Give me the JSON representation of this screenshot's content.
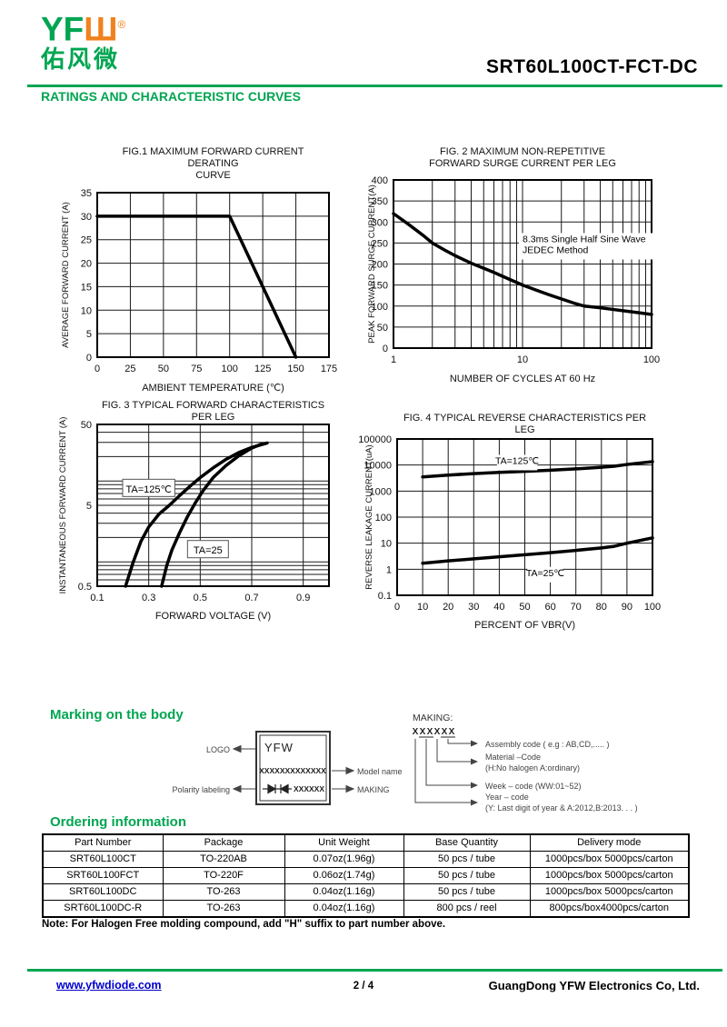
{
  "header": {
    "logo_text_green": "YF",
    "logo_text_orange": "Ш",
    "logo_registered": "®",
    "logo_chinese": "佑风微",
    "part_number": "SRT60L100CT-FCT-DC",
    "section_title": "RATINGS AND CHARACTERISTIC CURVES"
  },
  "colors": {
    "brand_green": "#00A551",
    "brand_orange": "#F0821E",
    "link_blue": "#0000CC",
    "curve_black": "#000000"
  },
  "chart_data": [
    {
      "type": "line",
      "title_lines": [
        "FIG.1 MAXIMUM FORWARD CURRENT DERATING",
        "CURVE"
      ],
      "xlabel": "AMBIENT TEMPERATURE (℃)",
      "ylabel": "AVERAGE FORWARD CURRENT (A)",
      "x": {
        "scale": "linear",
        "min": 0,
        "max": 175,
        "ticks": [
          [
            0,
            "0"
          ],
          [
            25,
            "25"
          ],
          [
            50,
            "50"
          ],
          [
            75,
            "75"
          ],
          [
            100,
            "100"
          ],
          [
            125,
            "125"
          ],
          [
            150,
            "150"
          ],
          [
            175,
            "175"
          ]
        ],
        "grid": [
          25,
          50,
          75,
          100,
          125,
          150
        ]
      },
      "y": {
        "scale": "linear",
        "min": 0,
        "max": 35,
        "ticks": [
          [
            0,
            "0"
          ],
          [
            5,
            "5"
          ],
          [
            10,
            "10"
          ],
          [
            15,
            "15"
          ],
          [
            20,
            "20"
          ],
          [
            25,
            "25"
          ],
          [
            30,
            "30"
          ],
          [
            35,
            "35"
          ]
        ],
        "grid": [
          5,
          10,
          15,
          20,
          25,
          30
        ]
      },
      "series": [
        {
          "name": "derating",
          "points": [
            [
              0,
              30
            ],
            [
              100,
              30
            ],
            [
              150,
              0
            ]
          ]
        }
      ],
      "annotations": []
    },
    {
      "type": "line",
      "title_lines": [
        "FIG. 2 MAXIMUM NON-REPETITIVE",
        "FORWARD SURGE CURRENT PER LEG"
      ],
      "xlabel": "NUMBER OF CYCLES AT 60 Hz",
      "ylabel": "PEAK FORWARD SURGE CURRENT(A)",
      "x": {
        "scale": "log",
        "min": 1,
        "max": 100,
        "ticks": [
          [
            1,
            "1"
          ],
          [
            10,
            "10"
          ],
          [
            100,
            "100"
          ]
        ],
        "grid": [
          2,
          3,
          4,
          5,
          6,
          7,
          8,
          9,
          10,
          20,
          30,
          40,
          50,
          60,
          70,
          80,
          90
        ]
      },
      "y": {
        "scale": "linear",
        "min": 0,
        "max": 400,
        "ticks": [
          [
            0,
            "0"
          ],
          [
            50,
            "50"
          ],
          [
            100,
            "100"
          ],
          [
            150,
            "150"
          ],
          [
            200,
            "200"
          ],
          [
            250,
            "250"
          ],
          [
            300,
            "300"
          ],
          [
            350,
            "350"
          ],
          [
            400,
            "400"
          ]
        ],
        "grid": [
          50,
          100,
          150,
          200,
          250,
          300,
          350
        ]
      },
      "series": [
        {
          "name": "surge",
          "points": [
            [
              1,
              320
            ],
            [
              1.3,
              295
            ],
            [
              1.7,
              268
            ],
            [
              2,
              250
            ],
            [
              2.5,
              233
            ],
            [
              3,
              220
            ],
            [
              4,
              202
            ],
            [
              5,
              190
            ],
            [
              6,
              180
            ],
            [
              8,
              163
            ],
            [
              10,
              150
            ],
            [
              13,
              137
            ],
            [
              16,
              127
            ],
            [
              20,
              117
            ],
            [
              25,
              107
            ],
            [
              30,
              100
            ],
            [
              40,
              96
            ],
            [
              50,
              92
            ],
            [
              60,
              89
            ],
            [
              80,
              84
            ],
            [
              100,
              80
            ]
          ]
        }
      ],
      "annotations": [
        {
          "lines": [
            "8.3ms Single Half Sine Wave",
            "JEDEC Method"
          ],
          "x": 10,
          "y": 252,
          "boxed": false,
          "anchor": "start"
        }
      ]
    },
    {
      "type": "line",
      "title_lines": [
        "FIG. 3 TYPICAL FORWARD CHARACTERISTICS",
        "PER LEG"
      ],
      "xlabel": "FORWARD VOLTAGE (V)",
      "ylabel": "INSTANTANEOUS FORWARD CURRENT (A)",
      "x": {
        "scale": "linear",
        "min": 0.1,
        "max": 1.0,
        "ticks": [
          [
            0.1,
            "0.1"
          ],
          [
            0.3,
            "0.3"
          ],
          [
            0.5,
            "0.5"
          ],
          [
            0.7,
            "0.7"
          ],
          [
            0.9,
            "0.9"
          ]
        ],
        "grid": [
          0.3,
          0.5,
          0.7,
          0.9
        ]
      },
      "y": {
        "scale": "log",
        "min": 0.5,
        "max": 50,
        "ticks": [
          [
            0.5,
            "0.5"
          ],
          [
            5,
            "5"
          ],
          [
            50,
            "50"
          ]
        ],
        "grid": [
          0.6,
          0.7,
          0.8,
          0.9,
          1,
          2,
          3,
          4,
          5,
          6,
          7,
          8,
          9,
          10,
          20,
          30,
          40
        ]
      },
      "series": [
        {
          "name": "TA=125C",
          "points": [
            [
              0.21,
              0.5
            ],
            [
              0.24,
              1.0
            ],
            [
              0.27,
              1.8
            ],
            [
              0.3,
              2.7
            ],
            [
              0.34,
              3.9
            ],
            [
              0.38,
              5.0
            ],
            [
              0.42,
              6.6
            ],
            [
              0.46,
              8.6
            ],
            [
              0.5,
              11
            ],
            [
              0.55,
              14.5
            ],
            [
              0.6,
              18.5
            ],
            [
              0.65,
              22.5
            ],
            [
              0.7,
              26
            ],
            [
              0.76,
              29.5
            ]
          ]
        },
        {
          "name": "TA=25",
          "points": [
            [
              0.35,
              0.5
            ],
            [
              0.37,
              0.9
            ],
            [
              0.39,
              1.4
            ],
            [
              0.42,
              2.3
            ],
            [
              0.45,
              3.6
            ],
            [
              0.48,
              5.3
            ],
            [
              0.51,
              7.5
            ],
            [
              0.55,
              11
            ],
            [
              0.6,
              15.5
            ],
            [
              0.65,
              20.5
            ],
            [
              0.7,
              25.5
            ],
            [
              0.74,
              28.8
            ]
          ]
        }
      ],
      "annotations": [
        {
          "lines": [
            "TA=125℃"
          ],
          "x": 0.3,
          "y": 8,
          "boxed": true,
          "anchor": "middle"
        },
        {
          "lines": [
            "TA=25"
          ],
          "x": 0.53,
          "y": 1.4,
          "boxed": true,
          "anchor": "middle"
        }
      ]
    },
    {
      "type": "line",
      "title_lines": [
        "FIG. 4 TYPICAL REVERSE CHARACTERISTICS PER LEG"
      ],
      "xlabel": "PERCENT OF VBR(V)",
      "ylabel": "REVERSE LEAKAGE CURRENT(uA)",
      "x": {
        "scale": "linear",
        "min": 0,
        "max": 100,
        "ticks": [
          [
            0,
            "0"
          ],
          [
            10,
            "10"
          ],
          [
            20,
            "20"
          ],
          [
            30,
            "30"
          ],
          [
            40,
            "40"
          ],
          [
            50,
            "50"
          ],
          [
            60,
            "60"
          ],
          [
            70,
            "70"
          ],
          [
            80,
            "80"
          ],
          [
            90,
            "90"
          ],
          [
            100,
            "100"
          ]
        ],
        "grid": [
          10,
          20,
          30,
          40,
          50,
          60,
          70,
          80,
          90
        ]
      },
      "y": {
        "scale": "log",
        "min": 0.1,
        "max": 100000,
        "ticks": [
          [
            0.1,
            "0.1"
          ],
          [
            1,
            "1"
          ],
          [
            10,
            "10"
          ],
          [
            100,
            "100"
          ],
          [
            1000,
            "1000"
          ],
          [
            10000,
            "10000"
          ],
          [
            100000,
            "100000"
          ]
        ],
        "grid": [
          1,
          10,
          100,
          1000,
          10000
        ]
      },
      "series": [
        {
          "name": "TA=125C",
          "points": [
            [
              10,
              3500
            ],
            [
              20,
              4100
            ],
            [
              30,
              4700
            ],
            [
              40,
              5200
            ],
            [
              50,
              5700
            ],
            [
              60,
              6300
            ],
            [
              70,
              7100
            ],
            [
              80,
              8200
            ],
            [
              85,
              9000
            ],
            [
              90,
              10500
            ],
            [
              100,
              13500
            ]
          ]
        },
        {
          "name": "TA=25C",
          "points": [
            [
              10,
              1.7
            ],
            [
              20,
              2.1
            ],
            [
              30,
              2.5
            ],
            [
              40,
              3.0
            ],
            [
              50,
              3.6
            ],
            [
              60,
              4.3
            ],
            [
              70,
              5.3
            ],
            [
              80,
              6.6
            ],
            [
              85,
              7.6
            ],
            [
              90,
              10
            ],
            [
              100,
              16
            ]
          ]
        }
      ],
      "annotations": [
        {
          "lines": [
            "TA=125℃"
          ],
          "x": 47,
          "y": 11000,
          "boxed": false,
          "anchor": "middle"
        },
        {
          "lines": [
            "TA=25℃"
          ],
          "x": 58,
          "y": 0.55,
          "boxed": false,
          "anchor": "middle"
        }
      ]
    }
  ],
  "marking": {
    "heading": "Marking on the body",
    "body_logo": "YFW",
    "model_placeholder": "XXXXXXXXXXXXX",
    "making_placeholder": "XXXXXX",
    "label_logo": "LOGO",
    "label_polarity": "Polarity labeling",
    "label_model": "Model name",
    "label_making": "MAKING",
    "making_title": "MAKING:",
    "making_code_chars": [
      "X",
      "X",
      "X",
      "X",
      "X",
      "X"
    ],
    "legend": [
      {
        "line1": "Assembly code ( e.g : AB,CD,..... )",
        "line2": ""
      },
      {
        "line1": "Material –Code",
        "line2": "(H:No halogen   A:ordinary)"
      },
      {
        "line1": "Week – code (WW:01~52)",
        "line2": ""
      },
      {
        "line1": "Year – code",
        "line2": "(Y: Last digit of year & A:2012,B:2013. . . )"
      }
    ]
  },
  "ordering": {
    "heading": "Ordering information",
    "headers": [
      "Part Number",
      "Package",
      "Unit Weight",
      "Base Quantity",
      "Delivery mode"
    ],
    "rows": [
      [
        "SRT60L100CT",
        "TO-220AB",
        "0.07oz(1.96g)",
        "50 pcs / tube",
        "1000pcs/box 5000pcs/carton"
      ],
      [
        "SRT60L100FCT",
        "TO-220F",
        "0.06oz(1.74g)",
        "50 pcs / tube",
        "1000pcs/box 5000pcs/carton"
      ],
      [
        "SRT60L100DC",
        "TO-263",
        "0.04oz(1.16g)",
        "50 pcs / tube",
        "1000pcs/box 5000pcs/carton"
      ],
      [
        "SRT60L100DC-R",
        "TO-263",
        "0.04oz(1.16g)",
        "800 pcs / reel",
        "800pcs/box4000pcs/carton"
      ]
    ],
    "note": "Note: For Halogen Free molding compound, add \"H\" suffix to part number above."
  },
  "footer": {
    "website": "www.yfwdiode.com",
    "page": "2 / 4",
    "company": "GuangDong YFW Electronics Co, Ltd."
  }
}
